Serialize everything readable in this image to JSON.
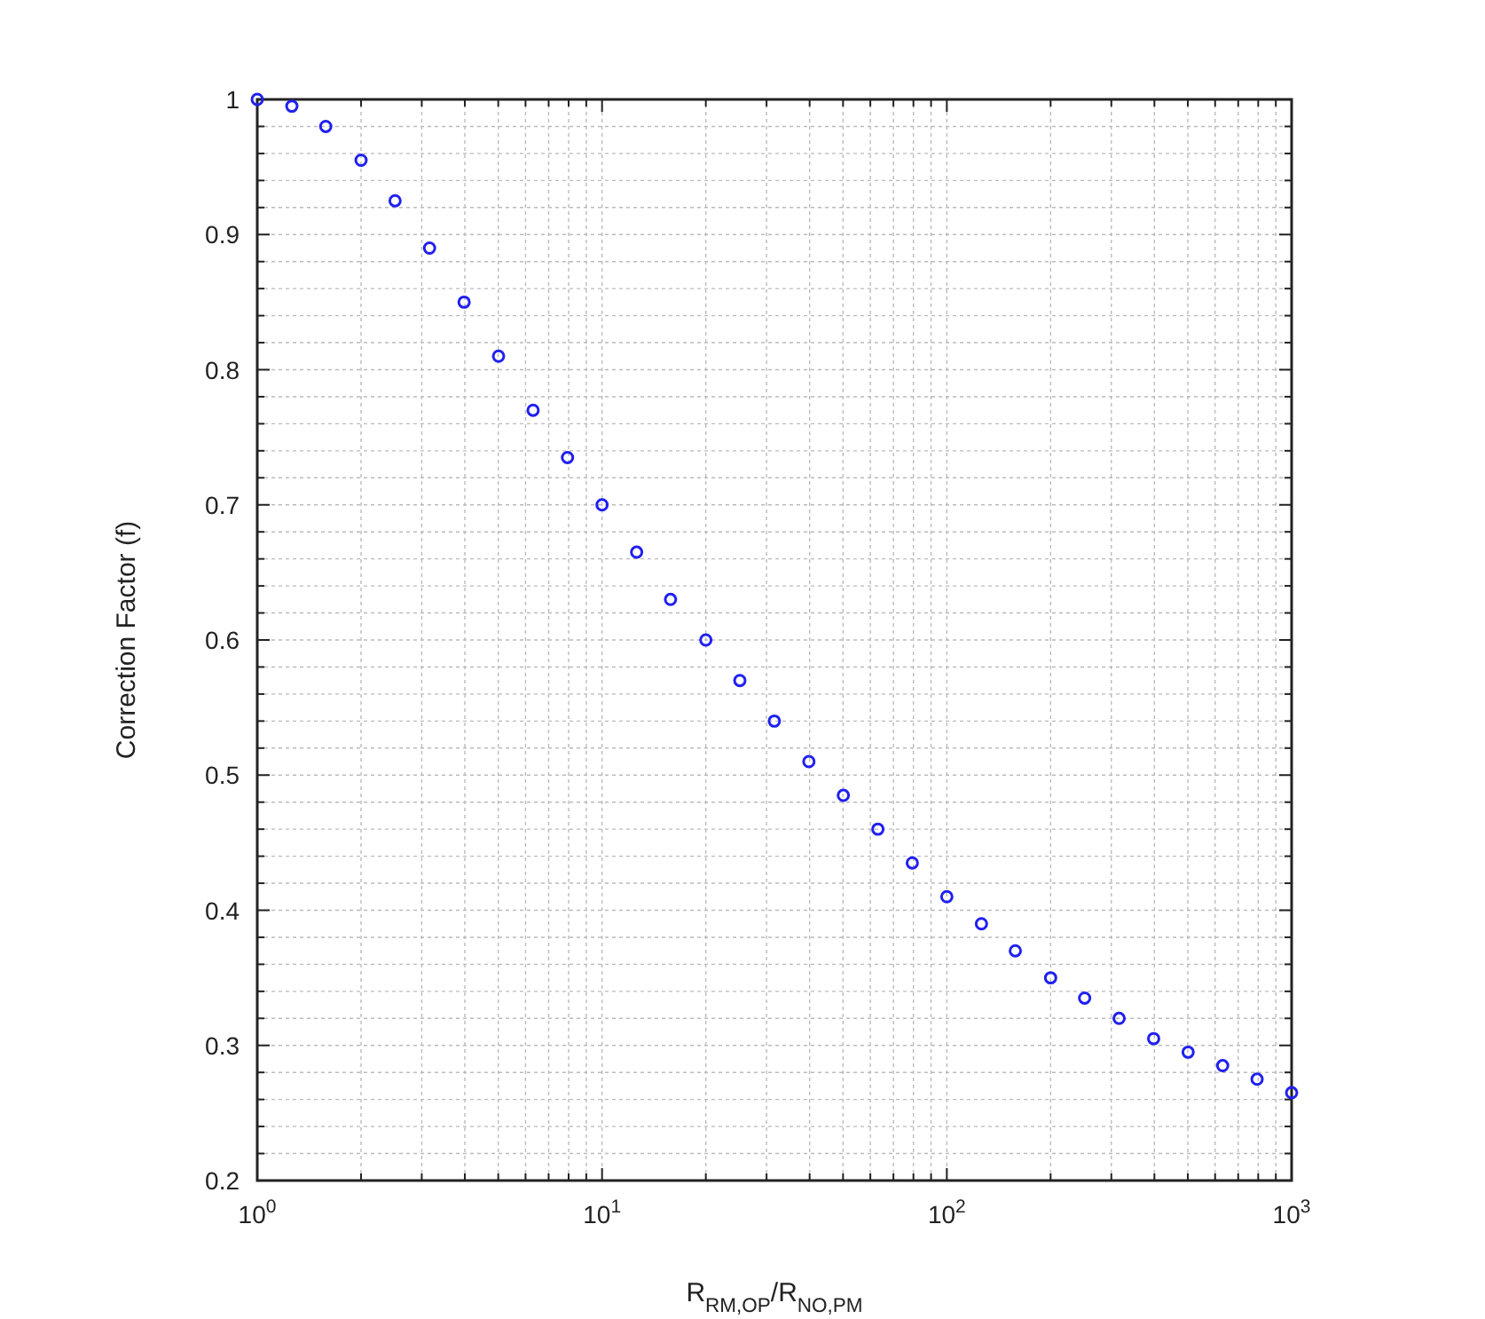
{
  "chart_data": {
    "type": "scatter",
    "xlabel": "R$_{RM,OP}$/R$_{NO,PM}$",
    "ylabel": "Correction Factor (f)",
    "log": "x",
    "grid": true,
    "marker": "circle",
    "xlim": [
      1,
      1000
    ],
    "ylim": [
      0.2,
      1
    ],
    "xticks": [
      {
        "value": 1,
        "label": "10$^{0}$"
      },
      {
        "value": 2,
        "label": null
      },
      {
        "value": 3,
        "label": null
      },
      {
        "value": 4,
        "label": null
      },
      {
        "value": 5,
        "label": null
      },
      {
        "value": 6,
        "label": null
      },
      {
        "value": 7,
        "label": null
      },
      {
        "value": 8,
        "label": null
      },
      {
        "value": 9,
        "label": null
      },
      {
        "value": 10,
        "label": "10$^{1}$"
      },
      {
        "value": 20,
        "label": null
      },
      {
        "value": 30,
        "label": null
      },
      {
        "value": 40,
        "label": null
      },
      {
        "value": 50,
        "label": null
      },
      {
        "value": 60,
        "label": null
      },
      {
        "value": 70,
        "label": null
      },
      {
        "value": 80,
        "label": null
      },
      {
        "value": 90,
        "label": null
      },
      {
        "value": 100,
        "label": "10$^{2}$"
      },
      {
        "value": 200,
        "label": null
      },
      {
        "value": 300,
        "label": null
      },
      {
        "value": 400,
        "label": null
      },
      {
        "value": 500,
        "label": null
      },
      {
        "value": 600,
        "label": null
      },
      {
        "value": 700,
        "label": null
      },
      {
        "value": 800,
        "label": null
      },
      {
        "value": 900,
        "label": null
      },
      {
        "value": 1000,
        "label": "10$^{3}$"
      }
    ],
    "yticks": [
      0.2,
      {
        "value": 0.22,
        "label": null
      },
      {
        "value": 0.24,
        "label": null
      },
      {
        "value": 0.26,
        "label": null
      },
      {
        "value": 0.28,
        "label": null
      },
      0.3,
      {
        "value": 0.32,
        "label": null
      },
      {
        "value": 0.34,
        "label": null
      },
      {
        "value": 0.36,
        "label": null
      },
      {
        "value": 0.38,
        "label": null
      },
      0.4,
      {
        "value": 0.42,
        "label": null
      },
      {
        "value": 0.44,
        "label": null
      },
      {
        "value": 0.46,
        "label": null
      },
      {
        "value": 0.48,
        "label": null
      },
      0.5,
      {
        "value": 0.52,
        "label": null
      },
      {
        "value": 0.54,
        "label": null
      },
      {
        "value": 0.56,
        "label": null
      },
      {
        "value": 0.58,
        "label": null
      },
      0.6,
      {
        "value": 0.62,
        "label": null
      },
      {
        "value": 0.64,
        "label": null
      },
      {
        "value": 0.66,
        "label": null
      },
      {
        "value": 0.68,
        "label": null
      },
      0.7,
      {
        "value": 0.72,
        "label": null
      },
      {
        "value": 0.74,
        "label": null
      },
      {
        "value": 0.76,
        "label": null
      },
      {
        "value": 0.78,
        "label": null
      },
      0.8,
      {
        "value": 0.82,
        "label": null
      },
      {
        "value": 0.84,
        "label": null
      },
      {
        "value": 0.86,
        "label": null
      },
      {
        "value": 0.88,
        "label": null
      },
      0.9,
      {
        "value": 0.92,
        "label": null
      },
      {
        "value": 0.94,
        "label": null
      },
      {
        "value": 0.96,
        "label": null
      },
      {
        "value": 0.98,
        "label": null
      },
      1
    ],
    "series": [
      {
        "color": "#2020f0",
        "x": [
          1,
          1.26,
          1.58,
          2,
          2.51,
          3.16,
          3.98,
          5.01,
          6.31,
          7.94,
          10,
          12.6,
          15.8,
          20,
          25.1,
          31.6,
          39.8,
          50.1,
          63.1,
          79.4,
          100,
          126,
          158,
          200,
          251,
          316,
          398,
          501,
          631,
          794,
          1000
        ],
        "values": [
          1,
          0.995,
          0.98,
          0.955,
          0.925,
          0.89,
          0.85,
          0.81,
          0.77,
          0.735,
          0.7,
          0.665,
          0.63,
          0.6,
          0.57,
          0.54,
          0.51,
          0.485,
          0.46,
          0.435,
          0.41,
          0.39,
          0.37,
          0.35,
          0.335,
          0.32,
          0.305,
          0.295,
          0.285,
          0.275,
          0.265
        ]
      }
    ]
  }
}
